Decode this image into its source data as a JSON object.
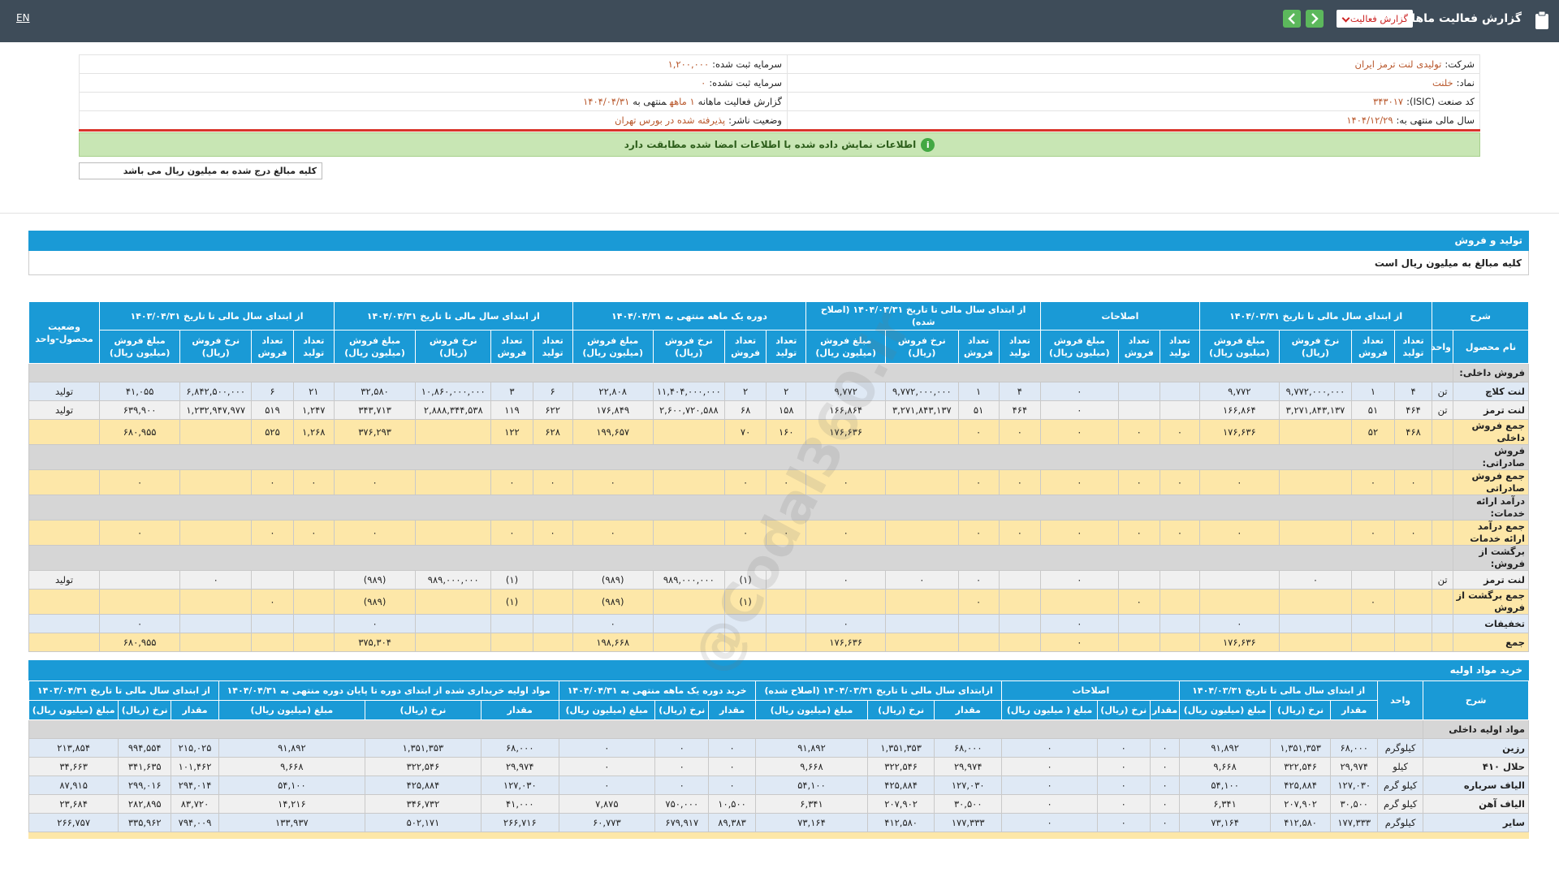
{
  "header": {
    "title": "گزارش فعالیت ماهانه",
    "report_select": "گزارش فعالیت",
    "language": "EN"
  },
  "info": [
    {
      "right": [
        "شرکت:",
        "تولیدی لنت ترمز ایران"
      ],
      "left": [
        "سرمایه ثبت شده:",
        "۱,۲۰۰,۰۰۰"
      ]
    },
    {
      "right": [
        "نماد:",
        "خلنت"
      ],
      "left": [
        "سرمایه ثبت نشده:",
        "۰"
      ]
    },
    {
      "right": [
        "کد صنعت (ISIC):",
        "۳۴۳۰۱۷"
      ],
      "left": [
        "گزارش فعالیت ماهانه",
        "۱ ماهه",
        "منتهی به",
        "۱۴۰۴/۰۴/۳۱"
      ]
    },
    {
      "right": [
        "سال مالی منتهی به:",
        "۱۴۰۴/۱۲/۲۹"
      ],
      "left": [
        "وضعیت ناشر:",
        "پذیرفته شده در بورس تهران"
      ]
    }
  ],
  "notice": "اطلاعات نمایش داده شده با اطلاعات امضا شده مطابقت دارد",
  "amount_note": "کلیه مبالغ درج شده به میلیون ریال می باشد",
  "watermark": "@Codal360.ir",
  "production": {
    "title": "تولید و فروش",
    "subtitle": "کلیه مبالغ به میلیون ریال است",
    "groups": [
      {
        "label": "شرح",
        "columns": [
          "نام محصول",
          "واحد"
        ]
      },
      {
        "label": "از ابتدای سال مالی تا تاریخ ۱۴۰۴/۰۳/۳۱",
        "columns": [
          "تعداد تولید",
          "تعداد فروش",
          "نرخ فروش (ریال)",
          "مبلغ فروش (میلیون ریال)"
        ]
      },
      {
        "label": "اصلاحات",
        "columns": [
          "تعداد تولید",
          "تعداد فروش",
          "مبلغ فروش (میلیون ریال)"
        ]
      },
      {
        "label": "از ابتدای سال مالی تا تاریخ ۱۴۰۴/۰۳/۳۱ (اصلاح شده)",
        "columns": [
          "تعداد تولید",
          "تعداد فروش",
          "نرخ فروش (ریال)",
          "مبلغ فروش (میلیون ریال)"
        ]
      },
      {
        "label": "دوره یک ماهه منتهی به ۱۴۰۴/۰۴/۳۱",
        "columns": [
          "تعداد تولید",
          "تعداد فروش",
          "نرخ فروش (ریال)",
          "مبلغ فروش (میلیون ریال)"
        ]
      },
      {
        "label": "از ابتدای سال مالی تا تاریخ ۱۴۰۴/۰۴/۳۱",
        "columns": [
          "تعداد تولید",
          "تعداد فروش",
          "نرخ فروش (ریال)",
          "مبلغ فروش (میلیون ریال)"
        ]
      },
      {
        "label": "از ابتدای سال مالی تا تاریخ ۱۴۰۳/۰۴/۳۱",
        "columns": [
          "تعداد تولید",
          "تعداد فروش",
          "نرخ فروش (ریال)",
          "مبلغ فروش (میلیون ریال)"
        ]
      },
      {
        "label": "وضعیت محصول-واحد"
      }
    ],
    "rows": [
      {
        "color": "#d6d6d6",
        "cells": [
          "فروش داخلی:"
        ]
      },
      {
        "color": "#dfe9f5",
        "cells": [
          "لنت کلاچ",
          "تن",
          "۴",
          "۱",
          "۹,۷۷۲,۰۰۰,۰۰۰",
          "۹,۷۷۲",
          null,
          null,
          "۰",
          "۴",
          "۱",
          "۹,۷۷۲,۰۰۰,۰۰۰",
          "۹,۷۷۲",
          "۲",
          "۲",
          "۱۱,۴۰۴,۰۰۰,۰۰۰",
          "۲۲,۸۰۸",
          "۶",
          "۳",
          "۱۰,۸۶۰,۰۰۰,۰۰۰",
          "۳۲,۵۸۰",
          "۲۱",
          "۶",
          "۶,۸۴۲,۵۰۰,۰۰۰",
          "۴۱,۰۵۵",
          "تولید"
        ]
      },
      {
        "color": "#f0f0f0",
        "cells": [
          "لنت ترمز",
          "تن",
          "۴۶۴",
          "۵۱",
          "۳,۲۷۱,۸۴۳,۱۳۷",
          "۱۶۶,۸۶۴",
          null,
          null,
          "۰",
          "۴۶۴",
          "۵۱",
          "۳,۲۷۱,۸۴۳,۱۳۷",
          "۱۶۶,۸۶۴",
          "۱۵۸",
          "۶۸",
          "۲,۶۰۰,۷۲۰,۵۸۸",
          "۱۷۶,۸۴۹",
          "۶۲۲",
          "۱۱۹",
          "۲,۸۸۸,۳۴۴,۵۳۸",
          "۳۴۳,۷۱۳",
          "۱,۲۴۷",
          "۵۱۹",
          "۱,۲۳۲,۹۴۷,۹۷۷",
          "۶۳۹,۹۰۰",
          "تولید"
        ]
      },
      {
        "color": "#fde7a8",
        "cells": [
          "جمع فروش داخلی",
          null,
          "۴۶۸",
          "۵۲",
          null,
          "۱۷۶,۶۳۶",
          "۰",
          "۰",
          "۰",
          "۰",
          "۰",
          null,
          "۱۷۶,۶۳۶",
          "۱۶۰",
          "۷۰",
          null,
          "۱۹۹,۶۵۷",
          "۶۲۸",
          "۱۲۲",
          null,
          "۳۷۶,۲۹۳",
          "۱,۲۶۸",
          "۵۲۵",
          null,
          "۶۸۰,۹۵۵",
          null
        ]
      },
      {
        "color": "#d6d6d6",
        "cells": [
          "فروش صادراتی:"
        ]
      },
      {
        "color": "#fde7a8",
        "cells": [
          "جمع فروش صادراتی",
          null,
          "۰",
          "۰",
          null,
          "۰",
          "۰",
          "۰",
          "۰",
          "۰",
          "۰",
          null,
          "۰",
          "۰",
          "۰",
          null,
          "۰",
          "۰",
          "۰",
          null,
          "۰",
          "۰",
          "۰",
          null,
          "۰",
          null
        ]
      },
      {
        "color": "#d6d6d6",
        "cells": [
          "درآمد ارائه خدمات:"
        ]
      },
      {
        "color": "#fde7a8",
        "cells": [
          "جمع درآمد ارائه خدمات",
          null,
          "۰",
          "۰",
          null,
          "۰",
          "۰",
          "۰",
          "۰",
          "۰",
          "۰",
          null,
          "۰",
          "۰",
          "۰",
          null,
          "۰",
          "۰",
          "۰",
          null,
          "۰",
          "۰",
          "۰",
          null,
          "۰",
          null
        ]
      },
      {
        "color": "#d6d6d6",
        "cells": [
          "برگشت از فروش:"
        ]
      },
      {
        "color": "#f0f0f0",
        "cells": [
          "لنت ترمز",
          "تن",
          null,
          null,
          "۰",
          null,
          null,
          null,
          "۰",
          null,
          "۰",
          "۰",
          "۰",
          null,
          "(۱)",
          "۹۸۹,۰۰۰,۰۰۰",
          "(۹۸۹)",
          null,
          "(۱)",
          "۹۸۹,۰۰۰,۰۰۰",
          "(۹۸۹)",
          null,
          null,
          "۰",
          null,
          "تولید"
        ]
      },
      {
        "color": "#fde7a8",
        "cells": [
          "جمع برگشت از فروش",
          null,
          null,
          "۰",
          null,
          null,
          null,
          "۰",
          null,
          null,
          "۰",
          null,
          null,
          null,
          "(۱)",
          null,
          "(۹۸۹)",
          null,
          "(۱)",
          null,
          "(۹۸۹)",
          null,
          "۰",
          null,
          null,
          null
        ]
      },
      {
        "color": "#dfe9f5",
        "cells": [
          "تخفیفات",
          null,
          null,
          null,
          null,
          "۰",
          null,
          null,
          "۰",
          null,
          null,
          null,
          "۰",
          null,
          null,
          null,
          "۰",
          null,
          null,
          null,
          "۰",
          null,
          null,
          null,
          "۰",
          null
        ]
      },
      {
        "color": "#fde7a8",
        "cells": [
          "جمع",
          null,
          null,
          null,
          null,
          "۱۷۶,۶۳۶",
          null,
          null,
          "۰",
          null,
          null,
          null,
          "۱۷۶,۶۳۶",
          null,
          null,
          null,
          "۱۹۸,۶۶۸",
          null,
          null,
          null,
          "۳۷۵,۳۰۴",
          null,
          null,
          null,
          "۶۸۰,۹۵۵",
          null
        ]
      }
    ]
  },
  "materials": {
    "title": "خرید مواد اولیه",
    "groups": [
      {
        "label": "شرح"
      },
      {
        "label": "واحد"
      },
      {
        "label": "از ابتدای سال مالی تا تاریخ ۱۴۰۴/۰۳/۳۱",
        "columns": [
          "مقدار",
          "نرخ (ریال)",
          "مبلغ (میلیون ریال)"
        ]
      },
      {
        "label": "اصلاحات",
        "columns": [
          "مقدار",
          "نرخ (ریال)",
          "مبلغ ( میلیون ریال)"
        ]
      },
      {
        "label": "ازابتدای سال مالی تا تاریخ ۱۴۰۴/۰۳/۳۱ (اصلاح شده)",
        "columns": [
          "مقدار",
          "نرخ (ریال)",
          "مبلغ (میلیون ریال)"
        ]
      },
      {
        "label": "خرید دوره یک ماهه منتهی به ۱۴۰۴/۰۴/۳۱",
        "columns": [
          "مقدار",
          "نرخ (ریال)",
          "مبلغ (میلیون ریال)"
        ]
      },
      {
        "label": "مواد اولیه خریداری شده از ابتدای دوره تا پایان دوره منتهی به ۱۴۰۴/۰۴/۳۱",
        "columns": [
          "مقدار",
          "نرخ (ریال)",
          "مبلغ (میلیون ریال)"
        ]
      },
      {
        "label": "از ابتدای سال مالی تا تاریخ ۱۴۰۳/۰۴/۳۱",
        "columns": [
          "مقدار",
          "نرخ (ریال)",
          "مبلغ (میلیون ریال)"
        ]
      }
    ],
    "rows": [
      {
        "color": "#d6d6d6",
        "cells": [
          "مواد اولیه داخلی"
        ]
      },
      {
        "color": "#dfe9f5",
        "cells": [
          "رزین",
          "کیلوگرم",
          "۶۸,۰۰۰",
          "۱,۳۵۱,۳۵۳",
          "۹۱,۸۹۲",
          "۰",
          "۰",
          "۰",
          "۶۸,۰۰۰",
          "۱,۳۵۱,۳۵۳",
          "۹۱,۸۹۲",
          "۰",
          "۰",
          "۰",
          "۶۸,۰۰۰",
          "۱,۳۵۱,۳۵۳",
          "۹۱,۸۹۲",
          "۲۱۵,۰۲۵",
          "۹۹۴,۵۵۴",
          "۲۱۳,۸۵۴"
        ]
      },
      {
        "color": "#f0f0f0",
        "cells": [
          "حلال ۴۱۰",
          "کیلو",
          "۲۹,۹۷۴",
          "۳۲۲,۵۴۶",
          "۹,۶۶۸",
          "۰",
          "۰",
          "۰",
          "۲۹,۹۷۴",
          "۳۲۲,۵۴۶",
          "۹,۶۶۸",
          "۰",
          "۰",
          "۰",
          "۲۹,۹۷۴",
          "۳۲۲,۵۴۶",
          "۹,۶۶۸",
          "۱۰۱,۴۶۲",
          "۳۴۱,۶۳۵",
          "۳۴,۶۶۳"
        ]
      },
      {
        "color": "#dfe9f5",
        "cells": [
          "الیاف سرباره",
          "کیلو گرم",
          "۱۲۷,۰۳۰",
          "۴۲۵,۸۸۴",
          "۵۴,۱۰۰",
          "۰",
          "۰",
          "۰",
          "۱۲۷,۰۳۰",
          "۴۲۵,۸۸۴",
          "۵۴,۱۰۰",
          "۰",
          "۰",
          "۰",
          "۱۲۷,۰۳۰",
          "۴۲۵,۸۸۴",
          "۵۴,۱۰۰",
          "۲۹۴,۰۱۴",
          "۲۹۹,۰۱۶",
          "۸۷,۹۱۵"
        ]
      },
      {
        "color": "#f0f0f0",
        "cells": [
          "الیاف آهن",
          "کیلو گرم",
          "۳۰,۵۰۰",
          "۲۰۷,۹۰۲",
          "۶,۳۴۱",
          "۰",
          "۰",
          "۰",
          "۳۰,۵۰۰",
          "۲۰۷,۹۰۲",
          "۶,۳۴۱",
          "۱۰,۵۰۰",
          "۷۵۰,۰۰۰",
          "۷,۸۷۵",
          "۴۱,۰۰۰",
          "۳۴۶,۷۳۲",
          "۱۴,۲۱۶",
          "۸۳,۷۲۰",
          "۲۸۲,۸۹۵",
          "۲۳,۶۸۴"
        ]
      },
      {
        "color": "#dfe9f5",
        "cells": [
          "سایر",
          "کیلوگرم",
          "۱۷۷,۳۳۳",
          "۴۱۲,۵۸۰",
          "۷۳,۱۶۴",
          "۰",
          "۰",
          "۰",
          "۱۷۷,۳۳۳",
          "۴۱۲,۵۸۰",
          "۷۳,۱۶۴",
          "۸۹,۳۸۳",
          "۶۷۹,۹۱۷",
          "۶۰,۷۷۳",
          "۲۶۶,۷۱۶",
          "۵۰۲,۱۷۱",
          "۱۳۳,۹۳۷",
          "۷۹۴,۰۰۹",
          "۳۳۵,۹۶۲",
          "۲۶۶,۷۵۷"
        ]
      }
    ]
  }
}
